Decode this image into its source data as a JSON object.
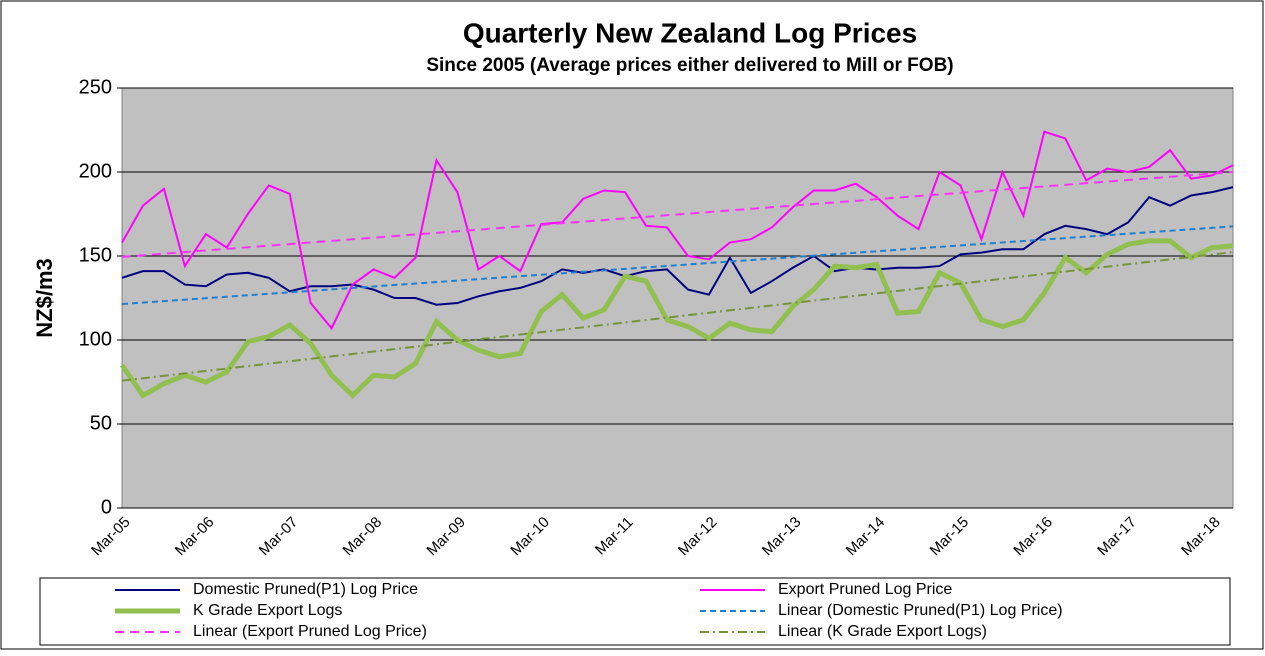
{
  "chart_data": {
    "type": "line",
    "title": "Quarterly New Zealand  Log Prices",
    "subtitle": "Since 2005 (Average prices either delivered to Mill or FOB)",
    "y_label": "NZ$/m3",
    "categories": [
      "Mar-05",
      null,
      null,
      null,
      "Mar-06",
      null,
      null,
      null,
      "Mar-07",
      null,
      null,
      null,
      "Mar-08",
      null,
      null,
      null,
      "Mar-09",
      null,
      null,
      null,
      "Mar-10",
      null,
      null,
      null,
      "Mar-11",
      null,
      null,
      null,
      "Mar-12",
      null,
      null,
      null,
      "Mar-13",
      null,
      null,
      null,
      "Mar-14",
      null,
      null,
      null,
      "Mar-15",
      null,
      null,
      null,
      "Mar-16",
      null,
      null,
      null,
      "Mar-17",
      null,
      null,
      null,
      "Mar-18",
      null
    ],
    "series": [
      {
        "name": "Domestic Pruned(P1) Log Price",
        "color": "#000080",
        "width": 2,
        "values": [
          137,
          141,
          141,
          133,
          132,
          139,
          140,
          137,
          129,
          132,
          132,
          133,
          130,
          125,
          125,
          121,
          122,
          126,
          129,
          131,
          135,
          142,
          140,
          142,
          138,
          141,
          142,
          130,
          127,
          149,
          128,
          135,
          143,
          150,
          141,
          143,
          142,
          143,
          143,
          144,
          151,
          152,
          154,
          154,
          163,
          168,
          166,
          163,
          170,
          185,
          180,
          186,
          188,
          191
        ]
      },
      {
        "name": "Export Pruned Log Price",
        "color": "#ff00ff",
        "width": 2,
        "values": [
          158,
          180,
          190,
          144,
          163,
          155,
          175,
          192,
          187,
          122,
          107,
          133,
          142,
          137,
          149,
          207,
          188,
          142,
          150,
          141,
          169,
          170,
          184,
          189,
          188,
          168,
          167,
          150,
          148,
          158,
          160,
          167,
          179,
          189,
          189,
          193,
          185,
          174,
          166,
          200,
          192,
          160,
          200,
          174,
          224,
          220,
          195,
          202,
          200,
          203,
          213,
          196,
          198,
          204
        ]
      },
      {
        "name": "K Grade Export Logs",
        "color": "#92c050",
        "width": 5,
        "values": [
          85,
          67,
          74,
          79,
          75,
          81,
          99,
          102,
          109,
          98,
          79,
          67,
          79,
          78,
          86,
          111,
          100,
          94,
          90,
          92,
          117,
          127,
          113,
          118,
          138,
          135,
          112,
          108,
          101,
          110,
          106,
          105,
          120,
          130,
          144,
          143,
          145,
          116,
          117,
          140,
          134,
          112,
          108,
          112,
          128,
          149,
          140,
          151,
          157,
          159,
          159,
          149,
          155,
          156
        ]
      },
      {
        "name": "Linear (Domestic Pruned(P1) Log Price)",
        "color": "#1f7fd0",
        "trend_of": 0,
        "dash": "6,4"
      },
      {
        "name": "Linear (Export Pruned Log Price)",
        "color": "#ff33ff",
        "trend_of": 1,
        "dash": "9,6"
      },
      {
        "name": "Linear (K Grade Export Logs)",
        "color": "#77933c",
        "trend_of": 2,
        "dash": "9,4,2,4"
      }
    ],
    "ylim": [
      0,
      250
    ],
    "yticks": [
      0,
      50,
      100,
      150,
      200,
      250
    ],
    "grid": true
  }
}
